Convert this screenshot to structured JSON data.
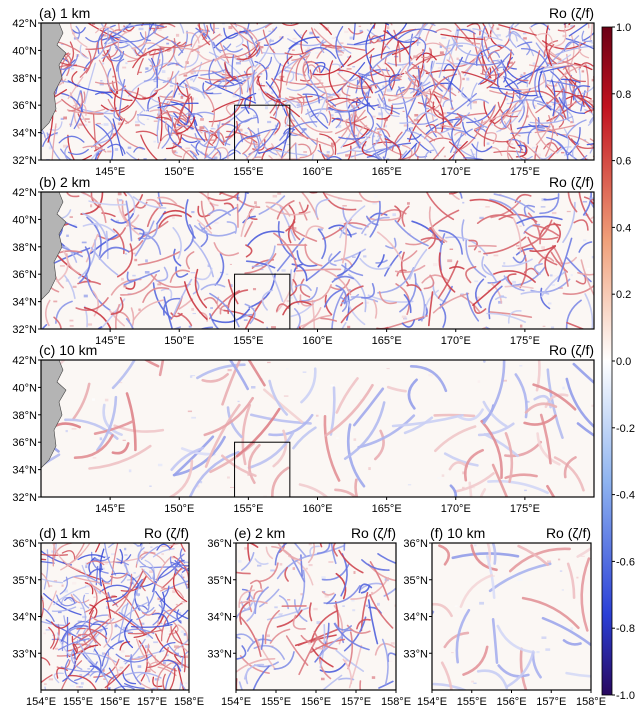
{
  "colors": {
    "negative": "#2b1fbf",
    "zero": "#ffffff",
    "positive": "#c1121f",
    "land": "#b4b4b4"
  },
  "chart_data": [
    {
      "type": "heatmap",
      "title": "(a) 1 km",
      "variable": "Ro (ζ/f)",
      "resolution_km": 1,
      "xticks": [
        "145°E",
        "150°E",
        "155°E",
        "160°E",
        "165°E",
        "170°E",
        "175°E"
      ],
      "yticks": [
        "42°N",
        "40°N",
        "38°N",
        "36°N",
        "34°N",
        "32°N"
      ],
      "xlim": [
        140,
        180
      ],
      "ylim": [
        32,
        42
      ],
      "inset_box": {
        "lon": [
          154,
          158
        ],
        "lat": [
          32,
          36
        ]
      }
    },
    {
      "type": "heatmap",
      "title": "(b) 2 km",
      "variable": "Ro (ζ/f)",
      "resolution_km": 2,
      "xticks": [
        "145°E",
        "150°E",
        "155°E",
        "160°E",
        "165°E",
        "170°E",
        "175°E"
      ],
      "yticks": [
        "42°N",
        "40°N",
        "38°N",
        "36°N",
        "34°N",
        "32°N"
      ],
      "xlim": [
        140,
        180
      ],
      "ylim": [
        32,
        42
      ],
      "inset_box": {
        "lon": [
          154,
          158
        ],
        "lat": [
          32,
          36
        ]
      }
    },
    {
      "type": "heatmap",
      "title": "(c) 10 km",
      "variable": "Ro (ζ/f)",
      "resolution_km": 10,
      "xticks": [
        "145°E",
        "150°E",
        "155°E",
        "160°E",
        "165°E",
        "170°E",
        "175°E"
      ],
      "yticks": [
        "42°N",
        "40°N",
        "38°N",
        "36°N",
        "34°N",
        "32°N"
      ],
      "xlim": [
        140,
        180
      ],
      "ylim": [
        32,
        42
      ],
      "inset_box": {
        "lon": [
          154,
          158
        ],
        "lat": [
          32,
          36
        ]
      }
    },
    {
      "type": "heatmap",
      "title": "(d) 1 km",
      "variable": "Ro (ζ/f)",
      "resolution_km": 1,
      "xticks": [
        "154°E",
        "155°E",
        "156°E",
        "157°E",
        "158°E"
      ],
      "yticks": [
        "36°N",
        "35°N",
        "34°N",
        "33°N"
      ],
      "xlim": [
        154,
        158
      ],
      "ylim": [
        32,
        36
      ]
    },
    {
      "type": "heatmap",
      "title": "(e) 2 km",
      "variable": "Ro (ζ/f)",
      "resolution_km": 2,
      "xticks": [
        "154°E",
        "155°E",
        "156°E",
        "157°E",
        "158°E"
      ],
      "yticks": [
        "36°N",
        "35°N",
        "34°N",
        "33°N"
      ],
      "xlim": [
        154,
        158
      ],
      "ylim": [
        32,
        36
      ]
    },
    {
      "type": "heatmap",
      "title": "(f) 10 km",
      "variable": "Ro (ζ/f)",
      "resolution_km": 10,
      "xticks": [
        "154°E",
        "155°E",
        "156°E",
        "157°E",
        "158°E"
      ],
      "yticks": [
        "36°N",
        "35°N",
        "34°N",
        "33°N"
      ],
      "xlim": [
        154,
        158
      ],
      "ylim": [
        32,
        36
      ]
    }
  ],
  "colorbar": {
    "range": [
      -1.0,
      1.0
    ],
    "ticks": [
      "1.0",
      "0.8",
      "0.6",
      "0.4",
      "0.2",
      "0.0",
      "-0.2",
      "-0.4",
      "-0.6",
      "-0.8",
      "-1.0"
    ],
    "ticklabels_desc": [
      1.0,
      0.8,
      0.6,
      0.4,
      0.2,
      0.0,
      -0.2,
      -0.4,
      -0.6,
      -0.8,
      -1.0
    ]
  }
}
